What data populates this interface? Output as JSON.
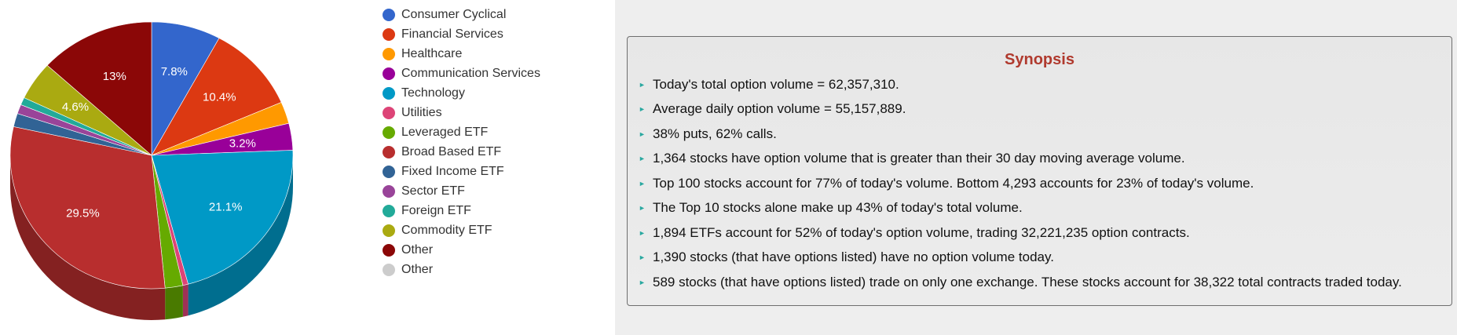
{
  "chart_data": {
    "type": "pie",
    "slices": [
      {
        "label": "Consumer Cyclical",
        "value": 7.8,
        "color": "#3366cc",
        "display": "7.8%"
      },
      {
        "label": "Financial Services",
        "value": 10.4,
        "color": "#dc3912",
        "display": "10.4%"
      },
      {
        "label": "Healthcare",
        "value": 2.6,
        "color": "#ff9900",
        "display": ""
      },
      {
        "label": "Communication Services",
        "value": 3.2,
        "color": "#990099",
        "display": "3.2%"
      },
      {
        "label": "Technology",
        "value": 21.1,
        "color": "#0099c6",
        "display": "21.1%"
      },
      {
        "label": "Utilities",
        "value": 0.6,
        "color": "#dd4477",
        "display": ""
      },
      {
        "label": "Leveraged ETF",
        "value": 2.0,
        "color": "#66aa00",
        "display": ""
      },
      {
        "label": "Broad Based ETF",
        "value": 29.5,
        "color": "#b82e2e",
        "display": "29.5%"
      },
      {
        "label": "Fixed Income ETF",
        "value": 1.6,
        "color": "#316395",
        "display": ""
      },
      {
        "label": "Sector ETF",
        "value": 1.1,
        "color": "#994499",
        "display": ""
      },
      {
        "label": "Foreign ETF",
        "value": 0.9,
        "color": "#22aa99",
        "display": ""
      },
      {
        "label": "Commodity ETF",
        "value": 4.6,
        "color": "#aaaa11",
        "display": "4.6%"
      },
      {
        "label": "Other",
        "value": 13.0,
        "color": "#8b0707",
        "display": "13%"
      },
      {
        "label": "Other",
        "value": 0.0,
        "color": "#cccccc",
        "display": ""
      }
    ],
    "legend_position": "right",
    "style": "3d"
  },
  "synopsis": {
    "title": "Synopsis",
    "items": [
      "Today's total option volume = 62,357,310.",
      "Average daily option volume = 55,157,889.",
      "38% puts, 62% calls.",
      "1,364 stocks have option volume that is greater than their 30 day moving average volume.",
      "Top 100 stocks account for 77% of today's volume. Bottom 4,293 accounts for 23% of today's volume.",
      "The Top 10 stocks alone make up 43% of today's total volume.",
      "1,894 ETFs account for 52% of today's option volume, trading 32,221,235 option contracts.",
      "1,390 stocks (that have options listed) have no option volume today.",
      "589 stocks (that have options listed) trade on only one exchange. These stocks account for 38,322 total contracts traded today."
    ]
  },
  "bullet_glyph": "►"
}
